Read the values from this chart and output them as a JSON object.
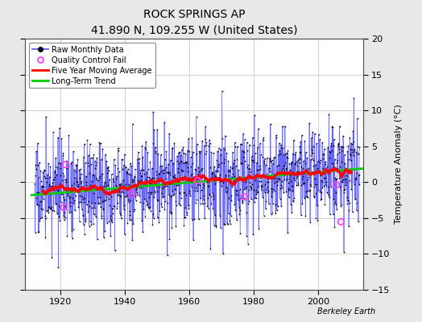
{
  "title": "ROCK SPRINGS AP",
  "subtitle": "41.890 N, 109.255 W (United States)",
  "ylabel": "Temperature Anomaly (°C)",
  "attribution": "Berkeley Earth",
  "year_start": 1912,
  "year_end": 2013,
  "ylim": [
    -15,
    20
  ],
  "yticks": [
    -15,
    -10,
    -5,
    0,
    5,
    10,
    15,
    20
  ],
  "xticks": [
    1920,
    1940,
    1960,
    1980,
    2000
  ],
  "background_color": "#e8e8e8",
  "plot_bg_color": "#ffffff",
  "raw_line_color": "#5555ff",
  "raw_dot_color": "#000000",
  "moving_avg_color": "#ff0000",
  "trend_color": "#00cc00",
  "qc_fail_color": "#ff44ff",
  "seed": 17
}
